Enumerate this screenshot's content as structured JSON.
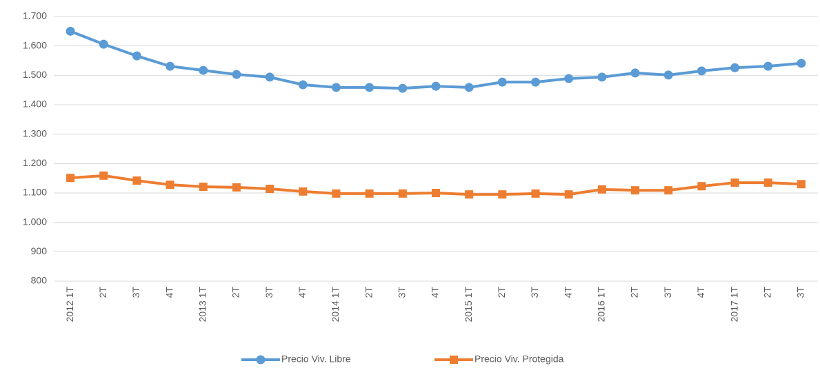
{
  "chart_data": {
    "type": "line",
    "categories": [
      "2012 1T",
      "2T",
      "3T",
      "4T",
      "2013 1T",
      "2T",
      "3T",
      "4T",
      "2014 1T",
      "2T",
      "3T",
      "4T",
      "2015 1T",
      "2T",
      "3T",
      "4T",
      "2016 1T",
      "2T",
      "3T",
      "4T",
      "2017 1T",
      "2T",
      "3T"
    ],
    "series": [
      {
        "name": "Precio Viv. Libre",
        "color": "#5b9bd5",
        "marker": "circle",
        "values": [
          1650,
          1606,
          1566,
          1531,
          1517,
          1503,
          1494,
          1468,
          1459,
          1459,
          1456,
          1463,
          1459,
          1477,
          1477,
          1489,
          1494,
          1508,
          1501,
          1515,
          1526,
          1531,
          1541
        ]
      },
      {
        "name": "Precio Viv. Protegida",
        "color": "#ed7d31",
        "marker": "square",
        "values": [
          1151,
          1159,
          1142,
          1128,
          1121,
          1119,
          1114,
          1105,
          1098,
          1098,
          1098,
          1100,
          1095,
          1095,
          1098,
          1095,
          1112,
          1109,
          1109,
          1123,
          1135,
          1135,
          1130
        ]
      }
    ],
    "ylim": [
      800,
      1700
    ],
    "yticks": [
      800,
      900,
      {
        "value": 1000,
        "label": "1.000"
      },
      {
        "value": 1100,
        "label": "1.100"
      },
      {
        "value": 1200,
        "label": "1.200"
      },
      {
        "value": 1300,
        "label": "1.300"
      },
      {
        "value": 1400,
        "label": "1.400"
      },
      {
        "value": 1500,
        "label": "1.500"
      },
      {
        "value": 1600,
        "label": "1.600"
      },
      {
        "value": 1700,
        "label": "1.700"
      }
    ],
    "grid": true,
    "legend": "bottom"
  }
}
